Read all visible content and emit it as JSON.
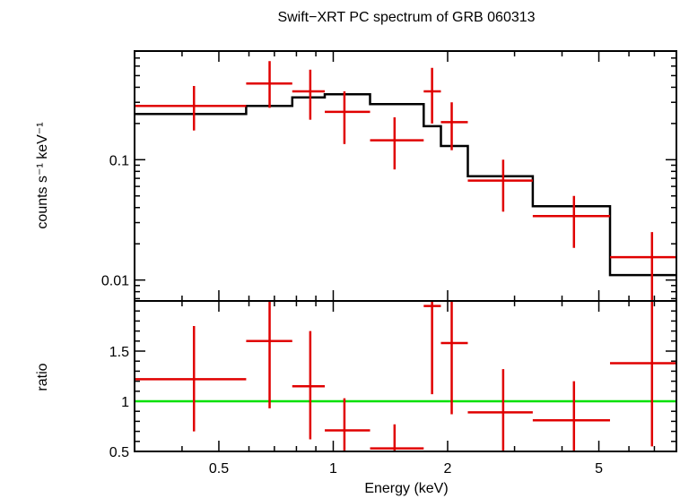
{
  "chart_data": [
    {
      "type": "step+errorbar",
      "panel": "top",
      "title": "Swift−XRT PC spectrum of GRB 060313",
      "ylabel": "counts s⁻¹ keV⁻¹",
      "yscale": "log",
      "xscale": "log",
      "xlim": [
        0.3,
        8.0
      ],
      "ylim": [
        0.0067,
        0.8
      ],
      "yticks": [
        {
          "value": 0.1,
          "label": "0.1"
        },
        {
          "value": 0.01,
          "label": "0.01"
        }
      ],
      "data_points": {
        "color": "#e00000",
        "x": [
          0.43,
          0.68,
          0.87,
          1.07,
          1.45,
          1.82,
          2.05,
          2.8,
          4.3,
          6.9
        ],
        "x_low": [
          0.3,
          0.59,
          0.78,
          0.95,
          1.25,
          1.73,
          1.92,
          2.26,
          3.35,
          5.35
        ],
        "x_high": [
          0.59,
          0.78,
          0.95,
          1.25,
          1.73,
          1.92,
          2.26,
          3.35,
          5.35,
          8.0
        ],
        "y": [
          0.28,
          0.43,
          0.37,
          0.25,
          0.145,
          0.37,
          0.205,
          0.067,
          0.034,
          0.0155
        ],
        "y_low": [
          0.175,
          0.27,
          0.215,
          0.135,
          0.083,
          0.2,
          0.12,
          0.037,
          0.0185,
          0.0065
        ],
        "y_high": [
          0.41,
          0.66,
          0.56,
          0.37,
          0.225,
          0.58,
          0.3,
          0.1,
          0.05,
          0.025
        ]
      },
      "model": {
        "color": "#000000",
        "edges": [
          0.3,
          0.59,
          0.78,
          0.95,
          1.25,
          1.73,
          1.92,
          2.26,
          3.35,
          5.35,
          8.0
        ],
        "values": [
          0.24,
          0.28,
          0.33,
          0.35,
          0.29,
          0.19,
          0.13,
          0.073,
          0.041,
          0.011
        ]
      }
    },
    {
      "type": "errorbar",
      "panel": "bottom",
      "ylabel": "ratio",
      "xlabel": "Energy (keV)",
      "xscale": "log",
      "xlim": [
        0.3,
        8.0
      ],
      "ylim": [
        0.5,
        2.0
      ],
      "xticks": [
        {
          "value": 0.5,
          "label": "0.5"
        },
        {
          "value": 1,
          "label": "1"
        },
        {
          "value": 2,
          "label": "2"
        },
        {
          "value": 5,
          "label": "5"
        }
      ],
      "yticks": [
        {
          "value": 0.5,
          "label": "0.5"
        },
        {
          "value": 1,
          "label": "1"
        },
        {
          "value": 1.5,
          "label": "1.5"
        }
      ],
      "reference_line": {
        "y": 1,
        "color": "#00e000"
      },
      "data_points": {
        "color": "#e00000",
        "x": [
          0.43,
          0.68,
          0.87,
          1.07,
          1.45,
          1.82,
          2.05,
          2.8,
          4.3,
          6.9
        ],
        "x_low": [
          0.3,
          0.59,
          0.78,
          0.95,
          1.25,
          1.73,
          1.92,
          2.26,
          3.35,
          5.35
        ],
        "x_high": [
          0.59,
          0.78,
          0.95,
          1.25,
          1.73,
          1.92,
          2.26,
          3.35,
          5.35,
          8.0
        ],
        "y": [
          1.22,
          1.6,
          1.15,
          0.71,
          0.53,
          1.95,
          1.58,
          0.89,
          0.81,
          1.38
        ],
        "y_low": [
          0.7,
          0.93,
          0.62,
          0.5,
          0.5,
          1.07,
          0.87,
          0.5,
          0.5,
          0.55
        ],
        "y_high": [
          1.75,
          2.0,
          1.7,
          1.03,
          0.77,
          2.0,
          2.0,
          1.32,
          1.2,
          2.0
        ]
      }
    }
  ]
}
